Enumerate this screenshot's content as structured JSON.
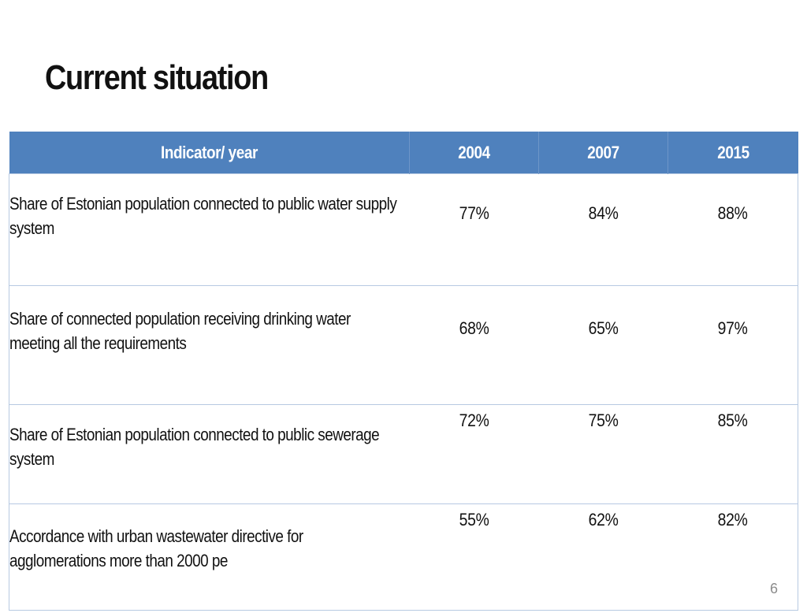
{
  "title": "Current situation",
  "table": {
    "headers": [
      "Indicator/ year",
      "2004",
      "2007",
      "2015"
    ],
    "rows": [
      {
        "indicator": "Share of Estonian population connected to public water supply system",
        "values": [
          "77%",
          "84%",
          "88%"
        ]
      },
      {
        "indicator": "Share of connected population receiving drinking water meeting all the requirements",
        "values": [
          "68%",
          "65%",
          "97%"
        ]
      },
      {
        "indicator": "Share of Estonian population connected to public sewerage system",
        "values": [
          "72%",
          "75%",
          "85%"
        ]
      },
      {
        "indicator": "Accordance with urban wastewater directive for agglomerations more than 2000 pe",
        "values": [
          "55%",
          "62%",
          "82%"
        ]
      }
    ]
  },
  "page_number": "6",
  "colors": {
    "header_bg": "#4f81bd",
    "header_text": "#ffffff",
    "border": "#b7c9e2",
    "page_number": "#8c8c8c"
  }
}
